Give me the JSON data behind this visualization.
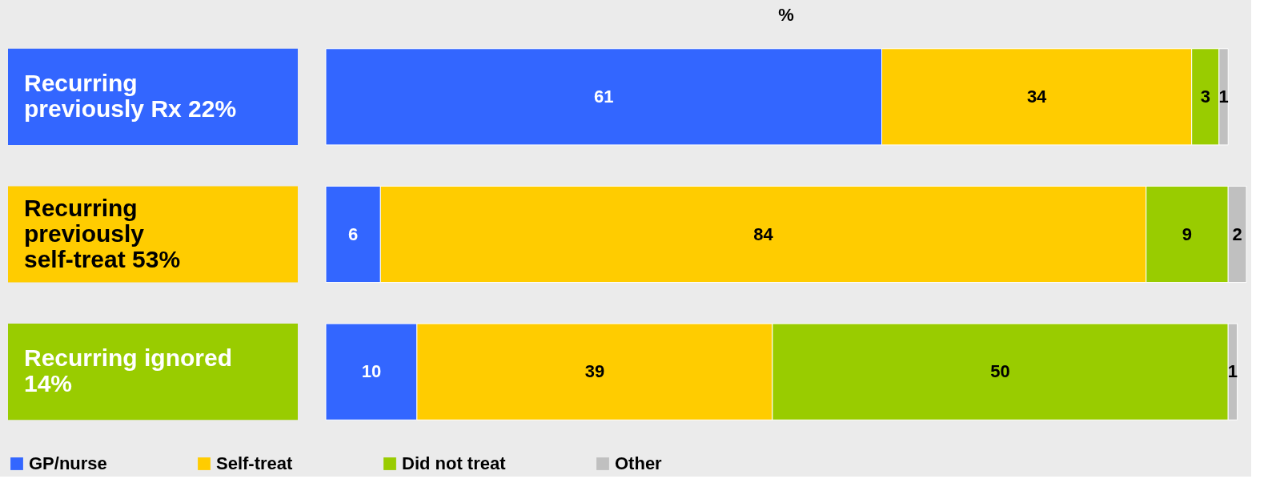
{
  "chart_data": {
    "type": "bar",
    "orientation": "horizontal",
    "stacked": true,
    "title": "%",
    "categories": [
      "Recurring previously Rx 22%",
      "Recurring previously self-treat 53%",
      "Recurring ignored 14%"
    ],
    "series": [
      {
        "name": "GP/nurse",
        "color": "#3366ff",
        "values": [
          61,
          6,
          10
        ]
      },
      {
        "name": "Self-treat",
        "color": "#ffcc00",
        "values": [
          34,
          84,
          39
        ]
      },
      {
        "name": "Did not treat",
        "color": "#99cc00",
        "values": [
          3,
          9,
          50
        ]
      },
      {
        "name": "Other",
        "color": "#c0c0c0",
        "values": [
          1,
          2,
          1
        ]
      }
    ],
    "data_labels": true,
    "legend": "bottom",
    "grid": false
  }
}
